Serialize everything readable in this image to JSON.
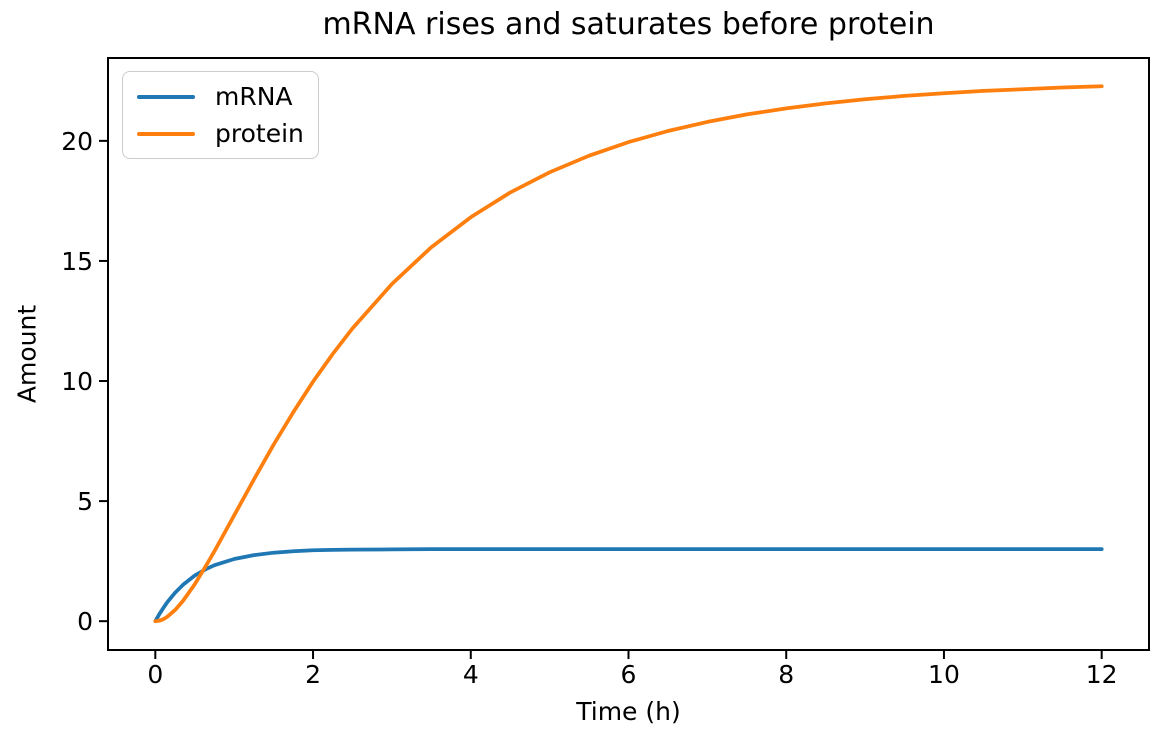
{
  "chart_data": {
    "type": "line",
    "title": "mRNA rises and saturates before protein",
    "xlabel": "Time (h)",
    "ylabel": "Amount",
    "xlim": [
      -0.6,
      12.6
    ],
    "ylim": [
      -1.2,
      23.45
    ],
    "xticks": [
      0,
      2,
      4,
      6,
      8,
      10,
      12
    ],
    "yticks": [
      0,
      5,
      10,
      15,
      20
    ],
    "grid": false,
    "legend_position": "upper-left",
    "background": "#ffffff",
    "axis_color": "#000000",
    "x": [
      0,
      0.05,
      0.1,
      0.15,
      0.25,
      0.35,
      0.5,
      0.65,
      0.75,
      1,
      1.25,
      1.5,
      1.75,
      2,
      2.25,
      2.5,
      3,
      3.5,
      4,
      4.5,
      5,
      5.5,
      6,
      6.5,
      7,
      7.5,
      8,
      8.5,
      9,
      9.5,
      10,
      10.5,
      11,
      11.5,
      12
    ],
    "series": [
      {
        "name": "mRNA",
        "color": "#1f77b4",
        "values": [
          0,
          0.29,
          0.54,
          0.78,
          1.18,
          1.51,
          1.9,
          2.18,
          2.33,
          2.59,
          2.75,
          2.85,
          2.91,
          2.95,
          2.97,
          2.98,
          2.99,
          3.0,
          3.0,
          3.0,
          3.0,
          3.0,
          3.0,
          3.0,
          3.0,
          3.0,
          3.0,
          3.0,
          3.0,
          3.0,
          3.0,
          3.0,
          3.0,
          3.0,
          3.0
        ]
      },
      {
        "name": "protein",
        "color": "#ff7f0e",
        "values": [
          0,
          0.02,
          0.08,
          0.18,
          0.46,
          0.84,
          1.54,
          2.35,
          2.92,
          4.41,
          5.9,
          7.35,
          8.7,
          9.97,
          11.13,
          12.19,
          14.04,
          15.57,
          16.82,
          17.85,
          18.69,
          19.38,
          19.95,
          20.41,
          20.79,
          21.1,
          21.35,
          21.56,
          21.73,
          21.87,
          21.98,
          22.08,
          22.15,
          22.22,
          22.27
        ]
      }
    ]
  }
}
